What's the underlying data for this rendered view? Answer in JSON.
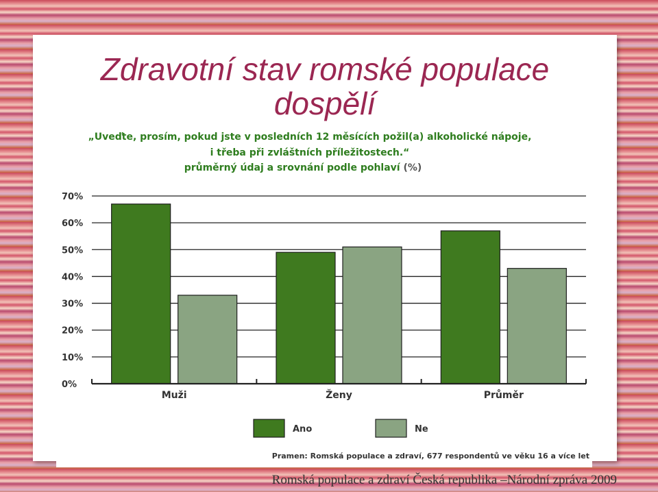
{
  "slide": {
    "title_line1": "Zdravotní stav romské populace",
    "title_line2": "dospělí",
    "footer": "Romská populace a zdraví Česká republika –Národní zpráva 2009"
  },
  "chart_data": {
    "type": "bar",
    "title_lines": [
      "„Uveďte, prosím, pokud jste v posledních 12 měsících požil(a) alkoholické nápoje,",
      "i třeba při zvláštních příležitostech.“"
    ],
    "subtitle": "průměrný údaj a srovnání podle pohlaví",
    "subtitle_suffix": "(%)",
    "categories": [
      "Muži",
      "Ženy",
      "Průměr"
    ],
    "series": [
      {
        "name": "Ano",
        "color": "#3f7a1f",
        "values": [
          67,
          49,
          57
        ]
      },
      {
        "name": "Ne",
        "color": "#8aa482",
        "values": [
          33,
          51,
          43
        ]
      }
    ],
    "ylim": [
      0,
      70
    ],
    "yticks": [
      0,
      10,
      20,
      30,
      40,
      50,
      60,
      70
    ],
    "ytick_labels": [
      "0%",
      "10%",
      "20%",
      "30%",
      "40%",
      "50%",
      "60%",
      "70%"
    ],
    "grid": true,
    "legend_position": "bottom-center",
    "source": "Pramen: Romská populace a zdraví, 677 respondentů ve věku 16 a více let"
  }
}
